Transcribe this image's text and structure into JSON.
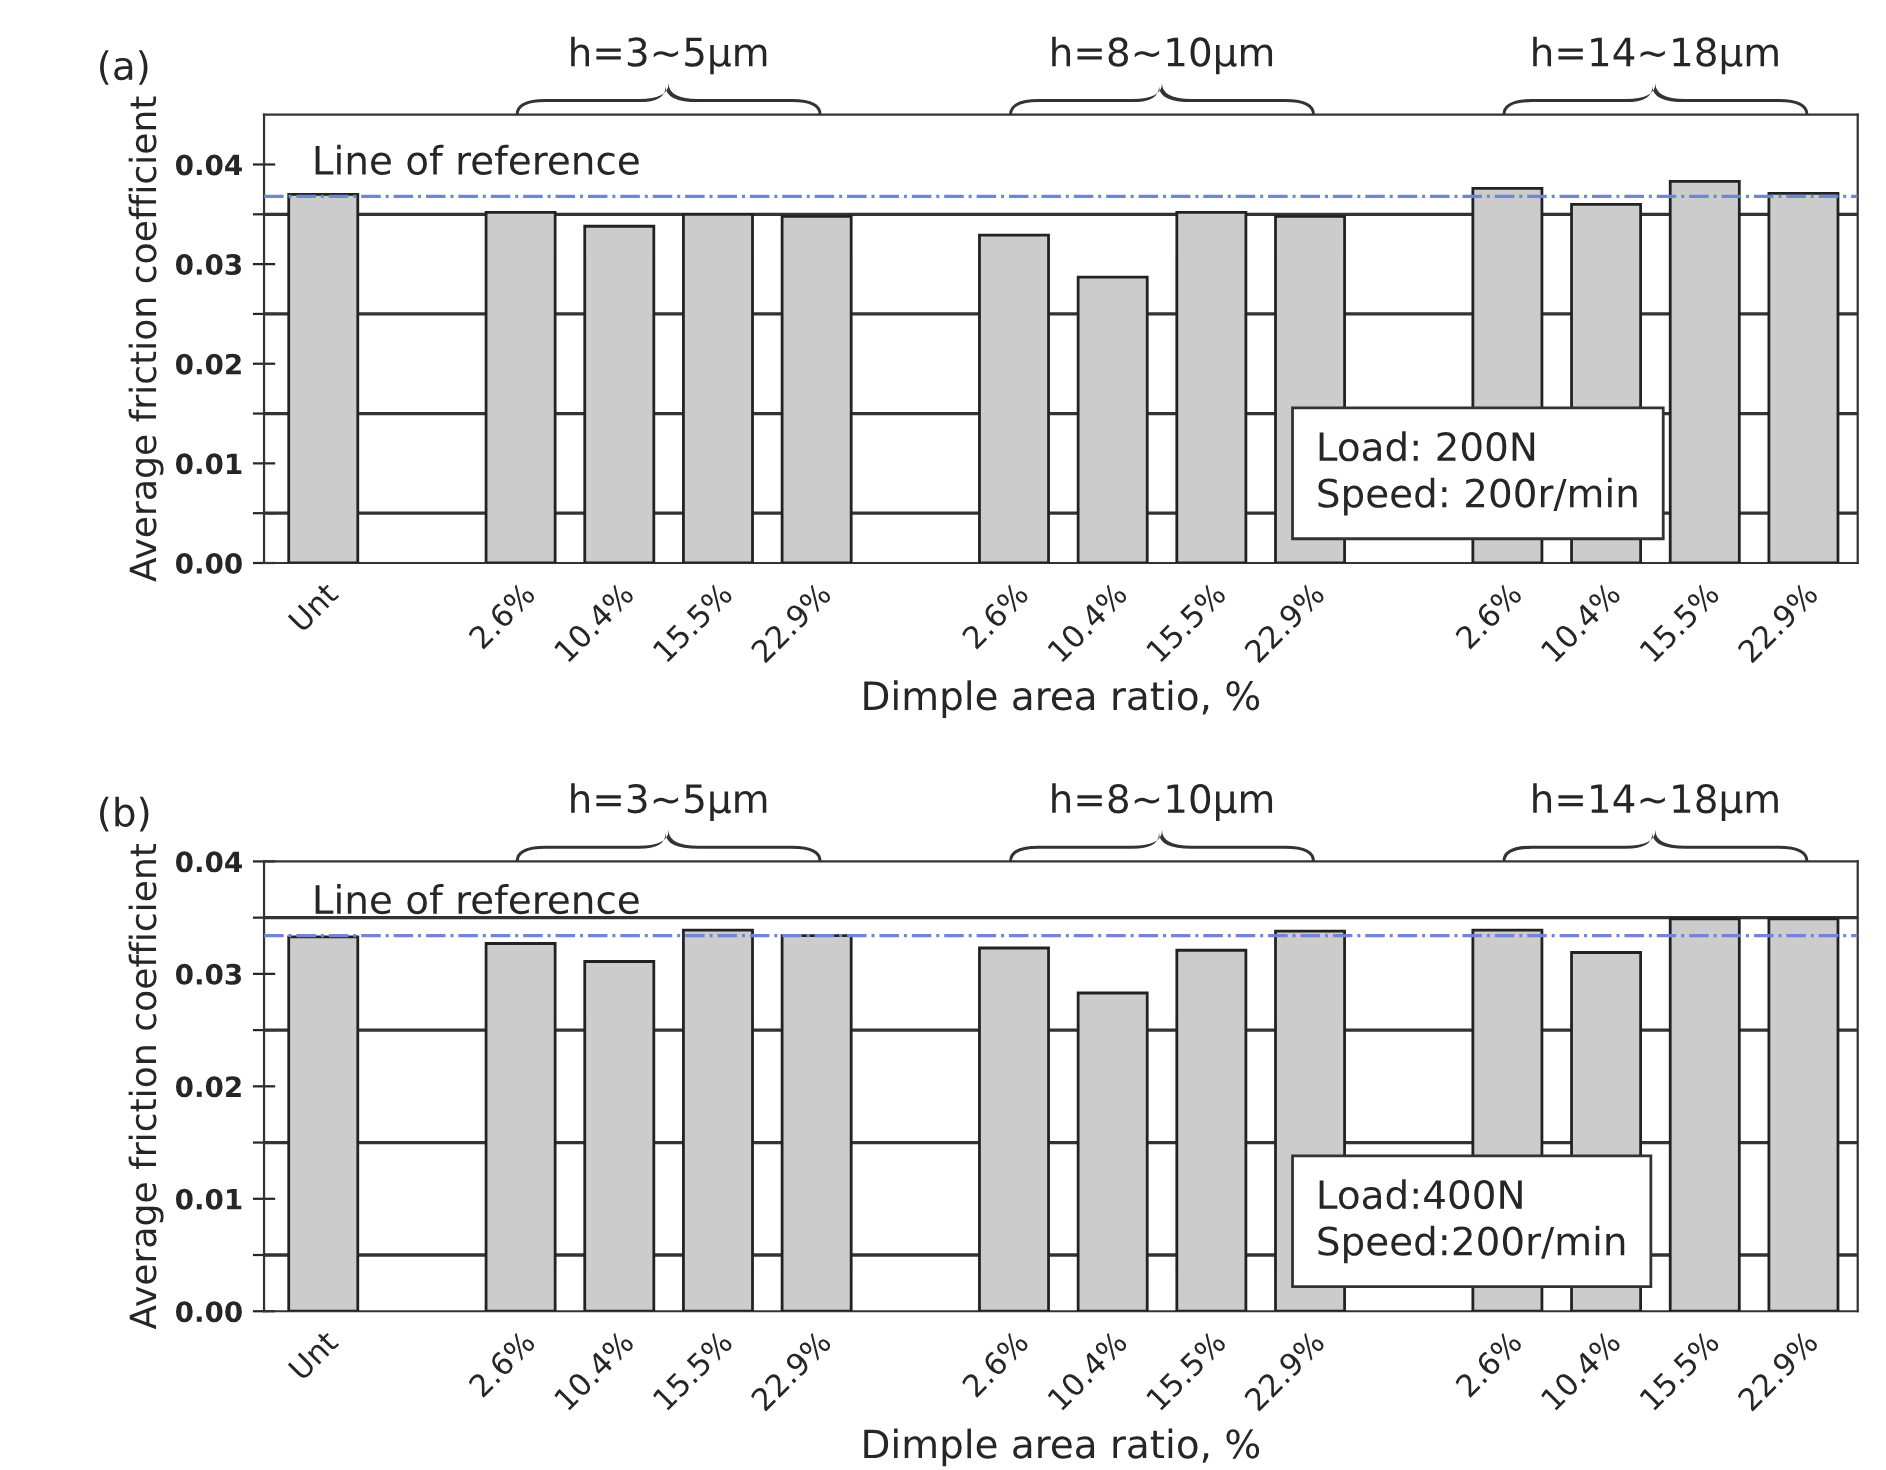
{
  "chart_data": [
    {
      "type": "bar",
      "xlabel": "Dimple area ratio, %",
      "ylabel": "Average friction coefficient",
      "categories": [
        "Unt",
        null,
        "2.6%",
        "10.4%",
        "15.5%",
        "22.9%",
        null,
        "2.6%",
        "10.4%",
        "15.5%",
        "22.9%",
        null,
        "2.6%",
        "10.4%",
        "15.5%",
        "22.9%"
      ],
      "values": [
        0.037,
        null,
        0.0352,
        0.0338,
        0.035,
        0.0348,
        null,
        0.0329,
        0.0287,
        0.0352,
        0.0348,
        null,
        0.0376,
        0.036,
        0.0383,
        0.0371
      ],
      "color": "#cccccc",
      "ylim": [
        0,
        0.045
      ],
      "yticks": [
        {
          "value": 0,
          "label": "0.00"
        },
        {
          "value": 0.005,
          "label": null
        },
        {
          "value": 0.01,
          "label": "0.01"
        },
        {
          "value": 0.015,
          "label": null
        },
        {
          "value": 0.02,
          "label": "0.02"
        },
        {
          "value": 0.025,
          "label": null
        },
        {
          "value": 0.03,
          "label": "0.03"
        },
        {
          "value": 0.035,
          "label": null
        },
        {
          "value": 0.04,
          "label": "0.04"
        }
      ],
      "grid": "y",
      "ref_lines": [
        {
          "axis": "y",
          "value": 0.0368,
          "label": "Line of reference",
          "color": "#6f86d6",
          "line_style": "dashdot"
        }
      ],
      "annotations": [
        "(a)",
        "h=3~5μm",
        "h=8~10μm",
        "h=14~18μm",
        "Load: 200N\nSpeed: 200r/min"
      ]
    },
    {
      "type": "bar",
      "xlabel": "Dimple area ratio, %",
      "ylabel": "Average friction coefficient",
      "categories": [
        "Unt",
        null,
        "2.6%",
        "10.4%",
        "15.5%",
        "22.9%",
        null,
        "2.6%",
        "10.4%",
        "15.5%",
        "22.9%",
        null,
        "2.6%",
        "10.4%",
        "15.5%",
        "22.9%"
      ],
      "values": [
        0.0333,
        null,
        0.0327,
        0.0311,
        0.0339,
        0.0334,
        null,
        0.0323,
        0.0283,
        0.0321,
        0.0338,
        null,
        0.0339,
        0.0319,
        0.0349,
        0.0349
      ],
      "color": "#cccccc",
      "ylim": [
        0,
        0.04
      ],
      "yticks": [
        {
          "value": 0,
          "label": "0.00"
        },
        {
          "value": 0.005,
          "label": null
        },
        {
          "value": 0.01,
          "label": "0.01"
        },
        {
          "value": 0.015,
          "label": null
        },
        {
          "value": 0.02,
          "label": "0.02"
        },
        {
          "value": 0.025,
          "label": null
        },
        {
          "value": 0.03,
          "label": "0.03"
        },
        {
          "value": 0.035,
          "label": null
        },
        {
          "value": 0.04,
          "label": "0.04"
        }
      ],
      "grid": "y",
      "ref_lines": [
        {
          "axis": "y",
          "value": 0.0334,
          "label": "Line of reference",
          "color": "#6f86d6",
          "line_style": "dashdot"
        }
      ],
      "annotations": [
        "(b)",
        "h=3~5μm",
        "h=8~10μm",
        "h=14~18μm",
        "Load:400N\nSpeed:200r/min"
      ]
    }
  ]
}
